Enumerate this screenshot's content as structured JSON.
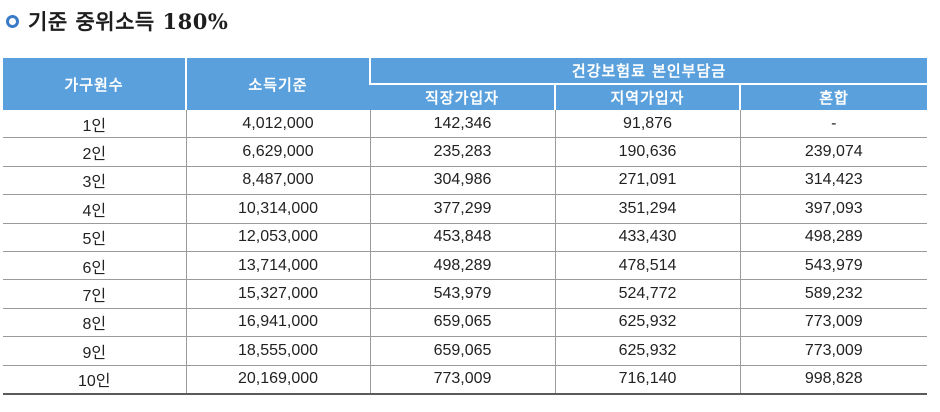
{
  "title": "기준 중위소득 180%",
  "table": {
    "header_household": "가구원수",
    "header_income": "소득기준",
    "header_group": "건강보험료 본인부담금",
    "header_employee": "직장가입자",
    "header_regional": "지역가입자",
    "header_mixed": "혼합",
    "rows": [
      {
        "household": "1인",
        "income": "4,012,000",
        "employee": "142,346",
        "regional": "91,876",
        "mixed": "-"
      },
      {
        "household": "2인",
        "income": "6,629,000",
        "employee": "235,283",
        "regional": "190,636",
        "mixed": "239,074"
      },
      {
        "household": "3인",
        "income": "8,487,000",
        "employee": "304,986",
        "regional": "271,091",
        "mixed": "314,423"
      },
      {
        "household": "4인",
        "income": "10,314,000",
        "employee": "377,299",
        "regional": "351,294",
        "mixed": "397,093"
      },
      {
        "household": "5인",
        "income": "12,053,000",
        "employee": "453,848",
        "regional": "433,430",
        "mixed": "498,289"
      },
      {
        "household": "6인",
        "income": "13,714,000",
        "employee": "498,289",
        "regional": "478,514",
        "mixed": "543,979"
      },
      {
        "household": "7인",
        "income": "15,327,000",
        "employee": "543,979",
        "regional": "524,772",
        "mixed": "589,232"
      },
      {
        "household": "8인",
        "income": "16,941,000",
        "employee": "659,065",
        "regional": "625,932",
        "mixed": "773,009"
      },
      {
        "household": "9인",
        "income": "18,555,000",
        "employee": "659,065",
        "regional": "625,932",
        "mixed": "773,009"
      },
      {
        "household": "10인",
        "income": "20,169,000",
        "employee": "773,009",
        "regional": "716,140",
        "mixed": "998,828"
      }
    ]
  },
  "colors": {
    "header_bg": "#5aa0dd",
    "bullet": "#3a7bc8"
  }
}
